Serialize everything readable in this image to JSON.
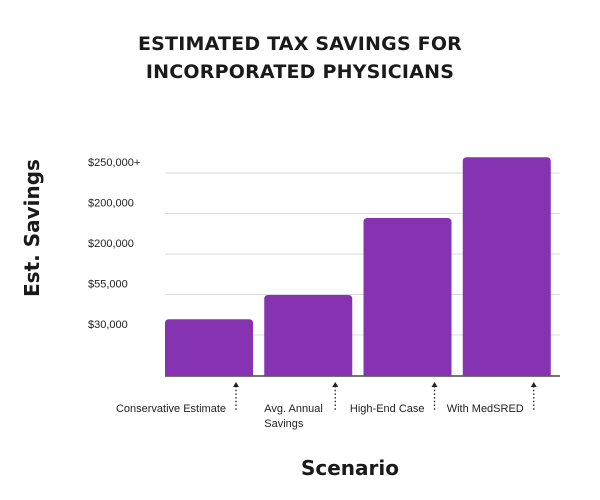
{
  "chart_data": {
    "type": "bar",
    "title_lines": [
      "ESTIMATED TAX SAVINGS FOR",
      "INCORPORATED PHYSICIANS"
    ],
    "xlabel": "Scenario",
    "ylabel": "Est. Savings",
    "categories": [
      [
        "Conservative Estimate"
      ],
      [
        "Avg. Annual",
        "Savings"
      ],
      [
        "High-End Case"
      ],
      [
        "With MedSRED"
      ]
    ],
    "y_tick_labels": [
      "$30,000",
      "$55,000",
      "$200,000",
      "$200,000",
      "$250,000+"
    ],
    "values": [
      1.4,
      2.0,
      3.9,
      5.4
    ],
    "ylim": [
      0,
      6
    ],
    "bar_color": "#8533b0",
    "grid": true,
    "arrows_under_categories": true
  }
}
